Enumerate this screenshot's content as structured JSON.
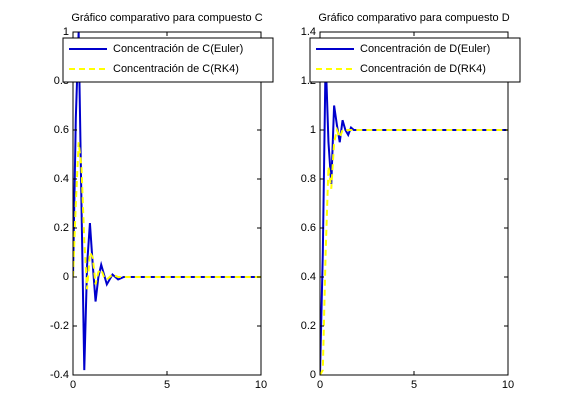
{
  "chart_data": [
    {
      "type": "line",
      "title": "Gráfico comparativo para compuesto C",
      "x": [
        0,
        0.15,
        0.3,
        0.45,
        0.6,
        0.75,
        0.9,
        1.05,
        1.2,
        1.35,
        1.5,
        1.65,
        1.8,
        2.1,
        2.4,
        2.7,
        3,
        10
      ],
      "series": [
        {
          "name": "Concentración de C(Euler)",
          "color": "#0000cc",
          "dash": "solid",
          "values": [
            0,
            0.65,
            1.0,
            0.3,
            -0.38,
            0.05,
            0.22,
            0.05,
            -0.1,
            0.0,
            0.05,
            0.01,
            -0.03,
            0.01,
            -0.01,
            0,
            0,
            0
          ]
        },
        {
          "name": "Concentración de C(RK4)",
          "color": "#ffff00",
          "dash": "dashed",
          "values": [
            0,
            0.3,
            0.55,
            0.45,
            0.15,
            -0.05,
            0.1,
            0.08,
            -0.03,
            0.02,
            0.03,
            0,
            -0.01,
            0.01,
            0,
            0,
            0,
            0
          ]
        }
      ],
      "xlim": [
        0,
        10
      ],
      "xticks": [
        0,
        5,
        10
      ],
      "ylim": [
        -0.4,
        1
      ],
      "yticks": [
        -0.4,
        -0.2,
        0,
        0.2,
        0.4,
        0.6,
        0.8,
        1
      ],
      "legend": "upper right"
    },
    {
      "type": "line",
      "title": "Gráfico comparativo para compuesto D",
      "x": [
        0,
        0.15,
        0.3,
        0.45,
        0.6,
        0.75,
        0.9,
        1.05,
        1.2,
        1.35,
        1.5,
        1.65,
        1.8,
        2.1,
        2.4,
        2.7,
        3,
        10
      ],
      "series": [
        {
          "name": "Concentración de D(Euler)",
          "color": "#0000cc",
          "dash": "solid",
          "values": [
            0,
            0.5,
            1.3,
            0.95,
            0.78,
            1.1,
            1.02,
            0.95,
            1.04,
            1.0,
            0.98,
            1.01,
            1.0,
            1.0,
            1.0,
            1.0,
            1.0,
            1.0
          ]
        },
        {
          "name": "Concentración de D(RK4)",
          "color": "#ffff00",
          "dash": "dashed",
          "values": [
            0,
            0.02,
            0.5,
            0.85,
            0.76,
            0.95,
            1.0,
            0.97,
            1.0,
            1.0,
            1.0,
            1.0,
            1.0,
            1.0,
            1.0,
            1.0,
            1.0,
            1.0
          ]
        }
      ],
      "xlim": [
        0,
        10
      ],
      "xticks": [
        0,
        5,
        10
      ],
      "ylim": [
        0,
        1.4
      ],
      "yticks": [
        0,
        0.2,
        0.4,
        0.6,
        0.8,
        1,
        1.2,
        1.4
      ],
      "legend": "upper right"
    }
  ]
}
